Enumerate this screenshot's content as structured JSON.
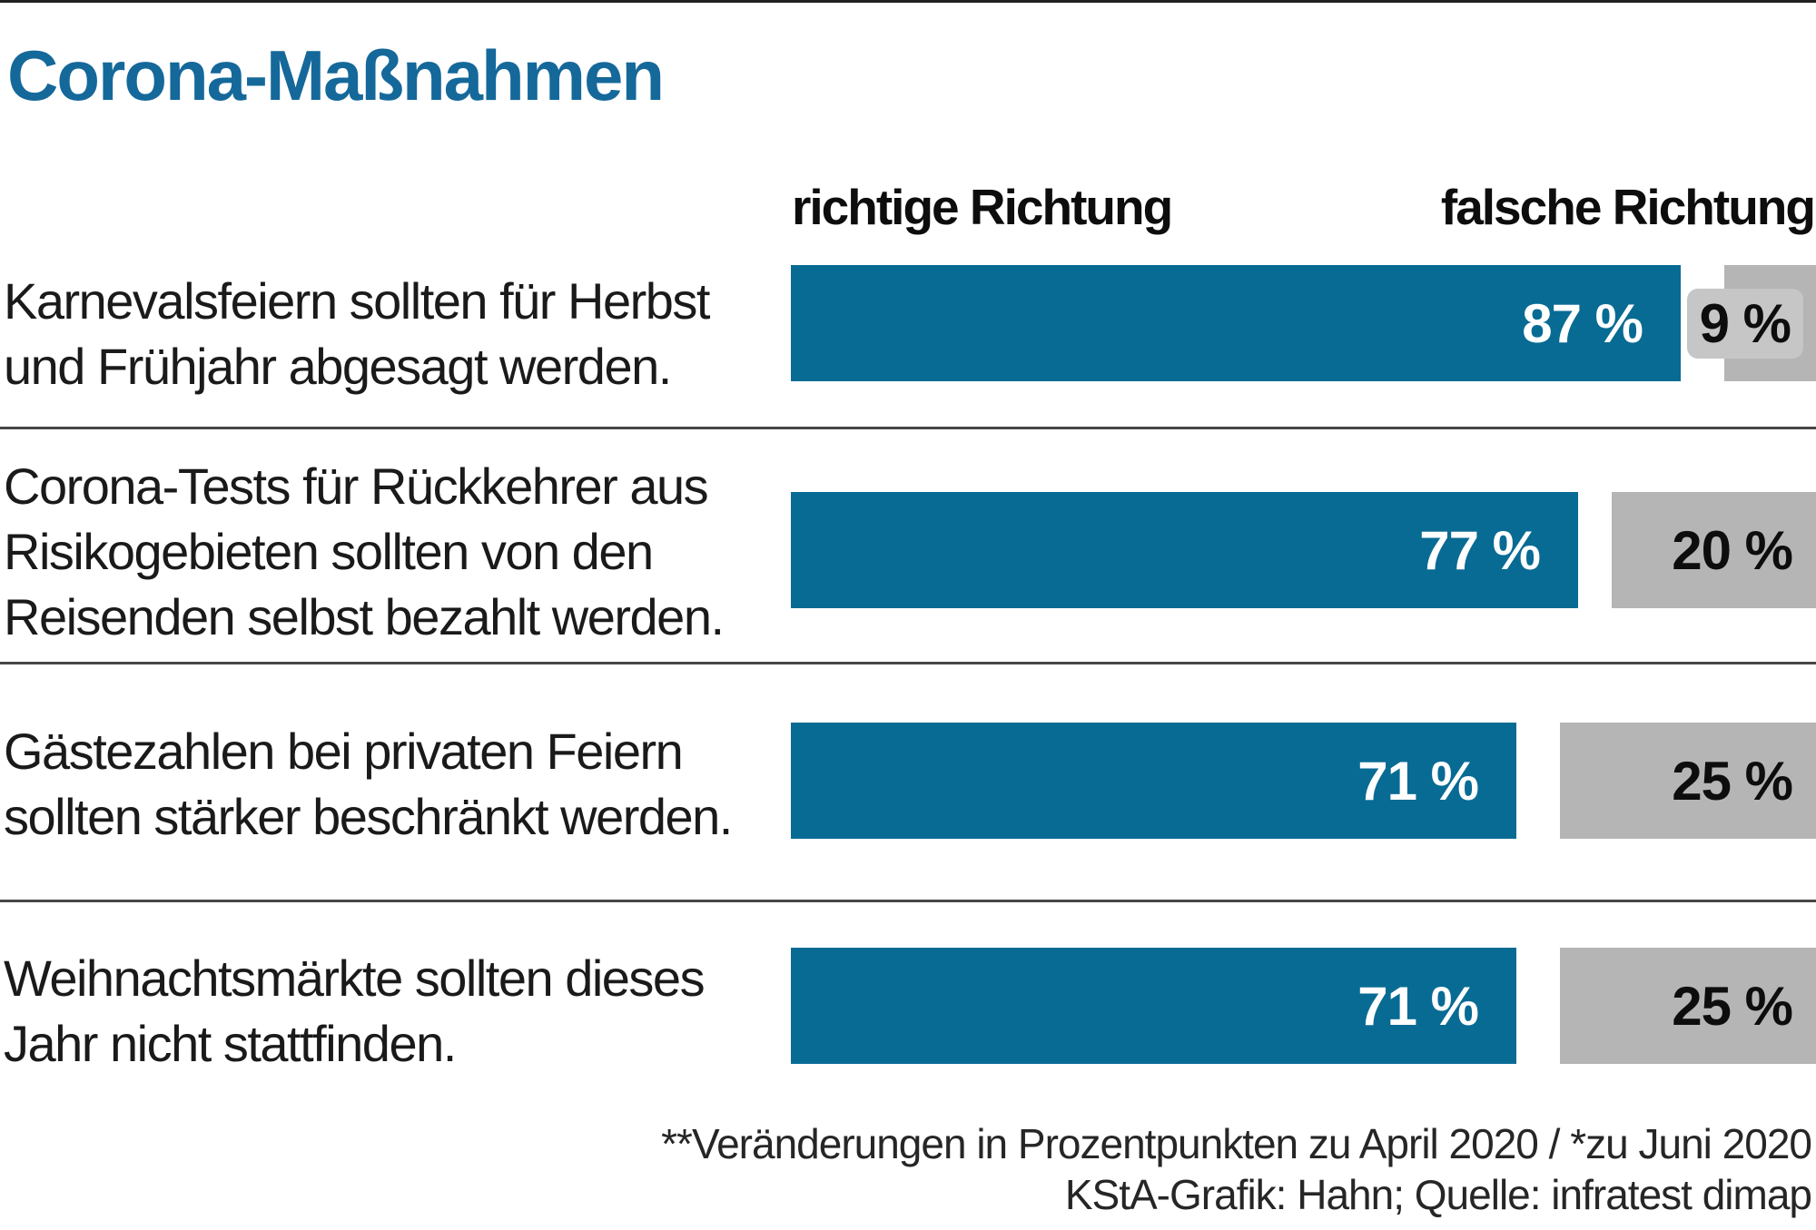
{
  "page": {
    "title": "Corona-Maßnahmen"
  },
  "headers": {
    "right": "richtige Richtung",
    "wrong": "falsche Richtung"
  },
  "rows": [
    {
      "label": "Karnevalsfeiern sollten für Herbst\nund Frühjahr abgesagt werden.",
      "right_pct": 87,
      "right_label": "87 %",
      "wrong_pct": 9,
      "wrong_label": "9 %"
    },
    {
      "label": "Corona-Tests für Rückkehrer aus\nRisikogebieten sollten von den\nReisenden selbst bezahlt werden.",
      "right_pct": 77,
      "right_label": "77 %",
      "wrong_pct": 20,
      "wrong_label": "20 %"
    },
    {
      "label": "Gästezahlen bei privaten Feiern\nsollten stärker beschränkt werden.",
      "right_pct": 71,
      "right_label": "71 %",
      "wrong_pct": 25,
      "wrong_label": "25 %"
    },
    {
      "label": "Weihnachtsmärkte sollten dieses\nJahr nicht stattfinden.",
      "right_pct": 71,
      "right_label": "71 %",
      "wrong_pct": 25,
      "wrong_label": "25 %"
    }
  ],
  "footer": {
    "line1": "**Veränderungen in Prozentpunkten zu April 2020 / *zu Juni 2020",
    "line2": "KStA-Grafik: Hahn; Quelle: infratest dimap"
  },
  "colors": {
    "title_blue": "#15689a",
    "bar_blue": "#086b94",
    "bar_gray": "#b5b5b5",
    "small_label_bg": "#c6c6c6",
    "divider": "#474747",
    "top_line": "#1f1f1f"
  },
  "chart_data": {
    "type": "bar",
    "orientation": "horizontal",
    "title": "Corona-Maßnahmen",
    "categories": [
      "Karnevalsfeiern sollten für Herbst und Frühjahr abgesagt werden.",
      "Corona-Tests für Rückkehrer aus Risikogebieten sollten von den Reisenden selbst bezahlt werden.",
      "Gästezahlen bei privaten Feiern sollten stärker beschränkt werden.",
      "Weihnachtsmärkte sollten dieses Jahr nicht stattfinden."
    ],
    "series": [
      {
        "name": "richtige Richtung",
        "color": "#086b94",
        "values": [
          87,
          77,
          71,
          71
        ]
      },
      {
        "name": "falsche Richtung",
        "color": "#b5b5b5",
        "values": [
          9,
          20,
          25,
          25
        ]
      }
    ],
    "unit": "%",
    "value_labels": true,
    "legend_position": "top-as-column-headers",
    "grid": false,
    "axis_range": [
      0,
      100
    ],
    "annotations": [
      "**Veränderungen in Prozentpunkten zu April 2020 / *zu Juni 2020",
      "KStA-Grafik: Hahn; Quelle: infratest dimap"
    ]
  }
}
